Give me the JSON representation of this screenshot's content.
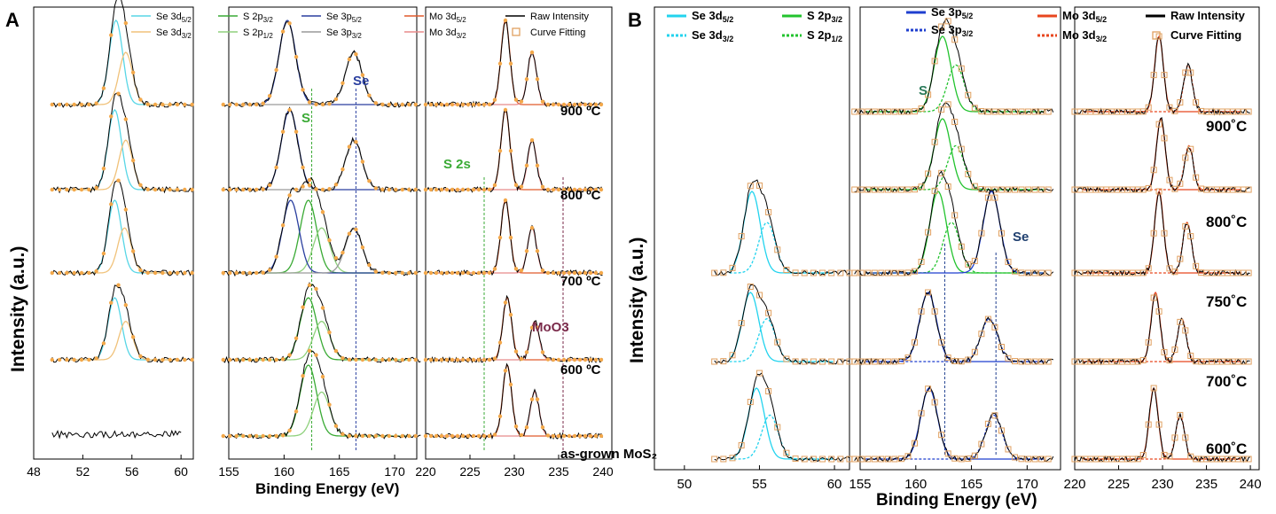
{
  "figure": {
    "panel_labels": [
      "A",
      "B"
    ],
    "ylabel": "Intensity (a.u.)",
    "xlabel": "Binding Energy (eV)"
  },
  "chart_data": [
    {
      "panel": "A",
      "type": "line",
      "title": "",
      "xlabel": "Binding Energy (eV)",
      "ylabel": "Intensity (a.u.)",
      "grid": false,
      "legend_position": "top",
      "subplots": [
        {
          "name": "Se 3d region",
          "xlim": [
            48,
            61
          ],
          "ticks": [
            "48",
            "52",
            "56",
            "60"
          ]
        },
        {
          "name": "S 2p / Se 3p region",
          "xlim": [
            155,
            172
          ],
          "ticks": [
            "155",
            "160",
            "165",
            "170"
          ]
        },
        {
          "name": "Mo 3d region",
          "xlim": [
            220,
            241
          ],
          "ticks": [
            "220",
            "225",
            "230",
            "235",
            "240"
          ]
        }
      ],
      "legend": [
        {
          "label": "Se 3d",
          "sub": "5/2",
          "color": "#58d6e6",
          "style": "solid"
        },
        {
          "label": "Se 3d",
          "sub": "3/2",
          "color": "#f0c27a",
          "style": "solid"
        },
        {
          "label": "S 2p",
          "sub": "3/2",
          "color": "#3aaa35",
          "style": "solid"
        },
        {
          "label": "S 2p",
          "sub": "1/2",
          "color": "#8fd17d",
          "style": "solid"
        },
        {
          "label": "Se 3p",
          "sub": "5/2",
          "color": "#2a3f9f",
          "style": "solid"
        },
        {
          "label": "Se 3p",
          "sub": "3/2",
          "color": "#9a9a9a",
          "style": "solid"
        },
        {
          "label": "Mo 3d",
          "sub": "5/2",
          "color": "#e05a2b",
          "style": "solid"
        },
        {
          "label": "Mo 3d",
          "sub": "3/2",
          "color": "#e88a8a",
          "style": "solid"
        },
        {
          "label": "Raw Intensity",
          "sub": "",
          "color": "#000000",
          "style": "solid"
        },
        {
          "label": "Curve Fitting",
          "sub": "",
          "color": "#e0a060",
          "style": "marker"
        }
      ],
      "rows": [
        {
          "label": "900 ºC",
          "se3d": true,
          "se3d_peaks": [
            54.7,
            55.5
          ],
          "s2p_peaks": [],
          "se3p_peaks": [
            160.3,
            166.3
          ],
          "mo3d_peaks": [
            229.0,
            232.0
          ]
        },
        {
          "label": "800 ºC",
          "se3d": true,
          "se3d_peaks": [
            54.6,
            55.5
          ],
          "s2p_peaks": [],
          "se3p_peaks": [
            160.5,
            166.3
          ],
          "mo3d_peaks": [
            229.0,
            232.0
          ]
        },
        {
          "label": "700 ºC",
          "se3d": true,
          "se3d_peaks": [
            54.6,
            55.4
          ],
          "s2p_peaks": [
            162.2,
            163.4
          ],
          "se3p_peaks": [
            160.6,
            166.3
          ],
          "mo3d_peaks": [
            229.0,
            232.0
          ]
        },
        {
          "label": "600 ºC",
          "se3d": true,
          "se3d_peaks": [
            54.6,
            55.5
          ],
          "s2p_peaks": [
            162.2,
            163.4
          ],
          "se3p_peaks": [],
          "mo3d_peaks": [
            229.2,
            232.3
          ]
        },
        {
          "label": "as-grown MoS₂",
          "se3d": false,
          "se3d_peaks": [],
          "s2p_peaks": [
            162.2,
            163.4
          ],
          "se3p_peaks": [],
          "mo3d_peaks": [
            229.2,
            232.3
          ]
        }
      ],
      "reference_lines": [
        {
          "label": "S",
          "x": 162.5,
          "color": "#3aaa35"
        },
        {
          "label": "Se",
          "x": 166.5,
          "color": "#2a3f9f"
        },
        {
          "label": "S 2s",
          "x": 226.6,
          "color": "#3aaa35"
        },
        {
          "label": "",
          "x": 235.5,
          "color": "#7a2a4a"
        }
      ],
      "annotations": [
        {
          "label": "S",
          "color": "#3aaa35"
        },
        {
          "label": "Se",
          "color": "#2a3f9f"
        },
        {
          "label": "S 2s",
          "color": "#3aaa35"
        },
        {
          "label": "MoO3",
          "color": "#7a2a4a"
        }
      ]
    },
    {
      "panel": "B",
      "type": "line",
      "title": "",
      "xlabel": "Binding Energy (eV)",
      "ylabel": "Intensity (a.u.)",
      "grid": false,
      "legend_position": "top",
      "subplots": [
        {
          "name": "Se 3d region",
          "xlim": [
            48,
            61
          ],
          "ticks": [
            "50",
            "55",
            "60"
          ]
        },
        {
          "name": "S 2p / Se 3p region",
          "xlim": [
            155,
            173
          ],
          "ticks": [
            "155",
            "160",
            "165",
            "170"
          ]
        },
        {
          "name": "Mo 3d region",
          "xlim": [
            220,
            241
          ],
          "ticks": [
            "220",
            "225",
            "230",
            "235",
            "240"
          ]
        }
      ],
      "legend": [
        {
          "label": "Se 3d",
          "sub": "5/2",
          "color": "#22d3ee",
          "style": "solid"
        },
        {
          "label": "Se 3d",
          "sub": "3/2",
          "color": "#22d3ee",
          "style": "dotted"
        },
        {
          "label": "S 2p",
          "sub": "3/2",
          "color": "#22c32e",
          "style": "solid"
        },
        {
          "label": "S 2p",
          "sub": "1/2",
          "color": "#22c32e",
          "style": "dotted"
        },
        {
          "label": "Se 3p",
          "sub": "5/2",
          "color": "#1f3fcf",
          "style": "solid"
        },
        {
          "label": "Se 3p",
          "sub": "3/2",
          "color": "#1f3fcf",
          "style": "dotted"
        },
        {
          "label": "Mo 3d",
          "sub": "5/2",
          "color": "#e8461e",
          "style": "solid"
        },
        {
          "label": "Mo 3d",
          "sub": "3/2",
          "color": "#e8461e",
          "style": "dotted"
        },
        {
          "label": "Raw Intensity",
          "sub": "",
          "color": "#000000",
          "style": "solid"
        },
        {
          "label": "Curve Fitting",
          "sub": "",
          "color": "#e0a060",
          "style": "marker"
        }
      ],
      "rows": [
        {
          "label": "900˚C",
          "se3d": false,
          "se3d_peaks": [],
          "s2p_peaks": [
            162.4,
            163.6
          ],
          "se3p_peaks": [],
          "mo3d_peaks": [
            229.6,
            232.9
          ]
        },
        {
          "label": "800˚C",
          "se3d": false,
          "se3d_peaks": [],
          "s2p_peaks": [
            162.4,
            163.6
          ],
          "se3p_peaks": [],
          "mo3d_peaks": [
            229.8,
            233.0
          ]
        },
        {
          "label": "750˚C",
          "se3d": true,
          "se3d_peaks": [
            54.5,
            55.5
          ],
          "s2p_peaks": [
            162.0,
            163.2
          ],
          "se3p_peaks": [
            166.8
          ],
          "mo3d_peaks": [
            229.6,
            232.8
          ]
        },
        {
          "label": "700˚C",
          "se3d": true,
          "se3d_peaks": [
            54.4,
            55.5
          ],
          "s2p_peaks": [],
          "se3p_peaks": [
            161.1,
            166.6
          ],
          "mo3d_peaks": [
            229.2,
            232.2
          ]
        },
        {
          "label": "600˚C",
          "se3d": true,
          "se3d_peaks": [
            54.8,
            55.7
          ],
          "s2p_peaks": [],
          "se3p_peaks": [
            161.2,
            167.0
          ],
          "mo3d_peaks": [
            229.0,
            232.0
          ]
        }
      ],
      "reference_lines": [
        {
          "label": "",
          "x": 162.6,
          "color": "#1f3f8f"
        },
        {
          "label": "Se",
          "x": 167.2,
          "color": "#1f3f8f"
        }
      ],
      "annotations": [
        {
          "label": "S",
          "color": "#2a7a5a"
        },
        {
          "label": "Se",
          "color": "#1f3f6f"
        }
      ]
    }
  ]
}
